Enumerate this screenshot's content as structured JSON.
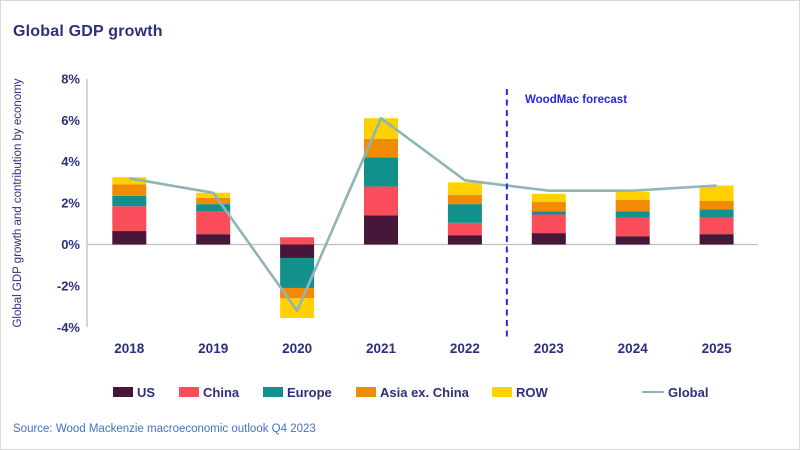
{
  "title": "Global GDP growth",
  "forecast_label": "WoodMac forecast",
  "source": "Source: Wood Mackenzie macroeconomic outlook Q4 2023",
  "colors": {
    "title_text": "#2b2f7e",
    "axis_text": "#2b2f7e",
    "axis_line": "#bfbfbf",
    "forecast_blue": "#2727e6",
    "source_text": "#4472c4",
    "us": "#471639",
    "china": "#f94d5c",
    "europe": "#12918c",
    "asia_ex_china": "#f18a05",
    "row": "#ffd100",
    "global_line": "#8fb5b6"
  },
  "chart_data": {
    "type": "bar",
    "stacked": true,
    "title": "Global GDP growth",
    "xlabel": "",
    "ylabel": "Global GDP growth and contribution by economy",
    "categories": [
      "2018",
      "2019",
      "2020",
      "2021",
      "2022",
      "2023",
      "2024",
      "2025"
    ],
    "series": [
      {
        "name": "US",
        "color_key": "us",
        "values": [
          0.65,
          0.5,
          -0.65,
          1.4,
          0.45,
          0.55,
          0.4,
          0.5
        ]
      },
      {
        "name": "China",
        "color_key": "china",
        "values": [
          1.2,
          1.1,
          0.35,
          1.4,
          0.6,
          0.9,
          0.9,
          0.8
        ]
      },
      {
        "name": "Europe",
        "color_key": "europe",
        "values": [
          0.5,
          0.35,
          -1.45,
          1.4,
          0.9,
          0.15,
          0.3,
          0.4
        ]
      },
      {
        "name": "Asia ex. China",
        "color_key": "asia_ex_china",
        "values": [
          0.55,
          0.3,
          -0.5,
          0.9,
          0.45,
          0.45,
          0.55,
          0.4
        ]
      },
      {
        "name": "ROW",
        "color_key": "row",
        "values": [
          0.35,
          0.25,
          -0.95,
          1.0,
          0.6,
          0.4,
          0.4,
          0.75
        ]
      }
    ],
    "line_series": {
      "name": "Global",
      "color_key": "global_line",
      "values": [
        3.2,
        2.5,
        -3.2,
        6.1,
        3.1,
        2.6,
        2.6,
        2.85
      ]
    },
    "ylim": [
      -4,
      8
    ],
    "yticks": [
      8,
      6,
      4,
      2,
      0,
      -2,
      -4
    ],
    "ytick_labels": [
      "8%",
      "6%",
      "4%",
      "2%",
      "0%",
      "-2%",
      "-4%"
    ],
    "grid": false,
    "legend_position": "bottom",
    "forecast_divider_between": [
      "2022",
      "2023"
    ]
  },
  "legend": {
    "items": [
      {
        "label": "US"
      },
      {
        "label": "China"
      },
      {
        "label": "Europe"
      },
      {
        "label": "Asia ex. China"
      },
      {
        "label": "ROW"
      },
      {
        "label": "Global"
      }
    ]
  }
}
